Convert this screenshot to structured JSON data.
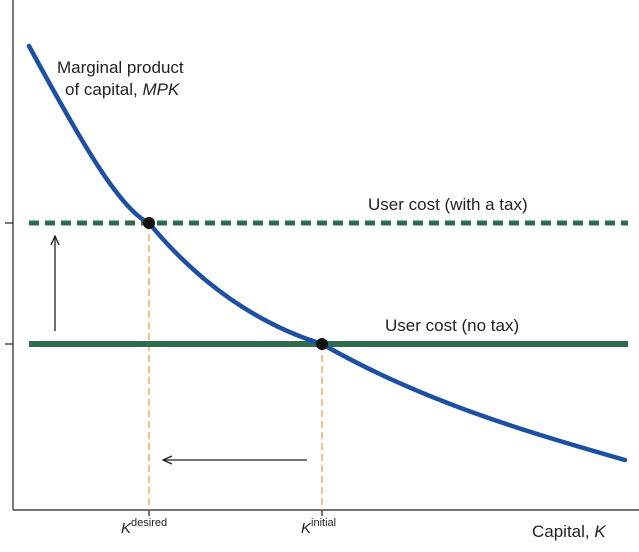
{
  "colors": {
    "demand_curve": "#1d50a3",
    "user_cost_lines": "#2f6b4e",
    "guide_lines": "#f3a64f",
    "axes": "#231f20",
    "points": "#111111"
  },
  "curve": {
    "label_line1": "Marginal product",
    "label_line2_prefix": "of capital, ",
    "label_line2_italic": "MPK"
  },
  "user_cost_tax": {
    "label": "User cost (with a tax)",
    "style": "dashed"
  },
  "user_cost_no_tax": {
    "label": "User cost (no tax)",
    "style": "solid"
  },
  "x_axis": {
    "label_prefix": "Capital, ",
    "label_italic": "K",
    "ticks": [
      {
        "base": "K",
        "sup": "desired"
      },
      {
        "base": "K",
        "sup": "initial"
      }
    ]
  },
  "arrows": {
    "vertical": "up",
    "horizontal": "left"
  }
}
